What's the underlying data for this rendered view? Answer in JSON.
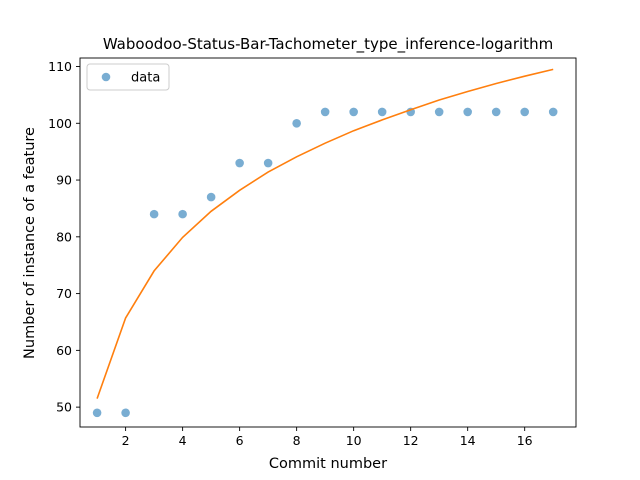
{
  "chart_data": {
    "type": "scatter",
    "title": "Waboodoo-Status-Bar-Tachometer_type_inference-logarithm",
    "xlabel": "Commit number",
    "ylabel": "Number of instance of a feature",
    "xlim": [
      0.4,
      17.8
    ],
    "ylim": [
      46.5,
      111.5
    ],
    "xticks": [
      2,
      4,
      6,
      8,
      10,
      12,
      14,
      16
    ],
    "yticks": [
      50,
      60,
      70,
      80,
      90,
      100,
      110
    ],
    "grid": false,
    "legend_position": "top-left",
    "series": [
      {
        "name": "data",
        "kind": "scatter",
        "color": "#1f77b4",
        "x": [
          1,
          2,
          3,
          4,
          5,
          6,
          7,
          8,
          9,
          10,
          11,
          12,
          13,
          14,
          15,
          16,
          17
        ],
        "y": [
          49,
          49,
          84,
          84,
          87,
          93,
          93,
          100,
          102,
          102,
          102,
          102,
          102,
          102,
          102,
          102,
          102
        ]
      },
      {
        "kind": "line",
        "color": "#ff7f0e",
        "x": [
          1,
          2,
          3,
          4,
          5,
          6,
          7,
          8,
          9,
          10,
          11,
          12,
          13,
          14,
          15,
          16,
          17
        ],
        "y": [
          51.5,
          65.7,
          74.0,
          79.9,
          84.5,
          88.2,
          91.4,
          94.1,
          96.5,
          98.7,
          100.6,
          102.4,
          104.1,
          105.6,
          107.0,
          108.3,
          109.5
        ]
      }
    ]
  }
}
